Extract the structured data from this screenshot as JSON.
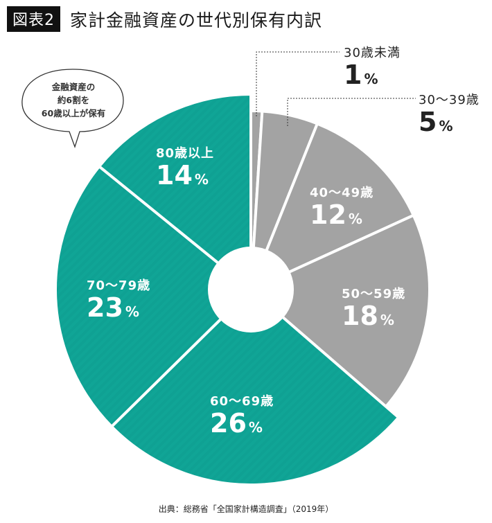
{
  "header": {
    "tag": "図表2",
    "title": "家計金融資産の世代別保有内訳"
  },
  "callout": {
    "line1": "金融資産の",
    "line2": "約6割を",
    "line3": "60歳以上が保有"
  },
  "colors": {
    "senior": "#10a596",
    "younger": "#a3a3a3",
    "separator": "#ffffff"
  },
  "labels": {
    "u30": {
      "cat": "30歳未満",
      "pct": "1",
      "unit": "%"
    },
    "a30": {
      "cat": "30〜39歳",
      "pct": "5",
      "unit": "%"
    },
    "a40": {
      "cat": "40〜49歳",
      "pct": "12",
      "unit": "%"
    },
    "a50": {
      "cat": "50〜59歳",
      "pct": "18",
      "unit": "%"
    },
    "a60": {
      "cat": "60〜69歳",
      "pct": "26",
      "unit": "%"
    },
    "a70": {
      "cat": "70〜79歳",
      "pct": "23",
      "unit": "%"
    },
    "a80": {
      "cat": "80歳以上",
      "pct": "14",
      "unit": "%"
    }
  },
  "source": "出典：総務省「全国家計構造調査」（2019年）",
  "chart_data": {
    "type": "pie",
    "title": "家計金融資産の世代別保有内訳",
    "subtitle": "図表2",
    "categories": [
      "30歳未満",
      "30〜39歳",
      "40〜49歳",
      "50〜59歳",
      "60〜69歳",
      "70〜79歳",
      "80歳以上"
    ],
    "values": [
      1,
      5,
      12,
      18,
      26,
      23,
      14
    ],
    "unit": "%",
    "donut": true,
    "start_angle": "12 o'clock, clockwise",
    "highlight_group": {
      "label": "60歳以上",
      "categories": [
        "60〜69歳",
        "70〜79歳",
        "80歳以上"
      ],
      "total": 63,
      "color": "#10a596"
    },
    "other_group_color": "#a3a3a3",
    "annotation": "金融資産の約6割を60歳以上が保有",
    "source": "出典：総務省「全国家計構造調査」（2019年）"
  }
}
